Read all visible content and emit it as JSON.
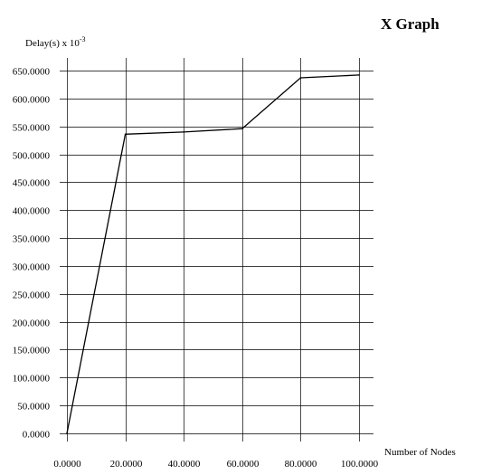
{
  "chart_data": {
    "type": "line",
    "title": "X Graph",
    "ylabel_prefix": "Delay(s) x 10",
    "ylabel_exponent": "-3",
    "xlabel": "Number of Nodes",
    "xlim": [
      0,
      100
    ],
    "ylim": [
      0,
      650
    ],
    "grid": true,
    "x_ticks": [
      0,
      20,
      40,
      60,
      80,
      100
    ],
    "x_tick_labels": [
      "0.0000",
      "20.0000",
      "40.0000",
      "60.0000",
      "80.0000",
      "100.0000"
    ],
    "y_ticks": [
      0,
      50,
      100,
      150,
      200,
      250,
      300,
      350,
      400,
      450,
      500,
      550,
      600,
      650
    ],
    "y_tick_labels": [
      "0.0000",
      "50.0000",
      "100.0000",
      "150.0000",
      "200.0000",
      "250.0000",
      "300.0000",
      "350.0000",
      "400.0000",
      "450.0000",
      "500.0000",
      "550.0000",
      "600.0000",
      "650.0000"
    ],
    "series": [
      {
        "x": [
          0,
          20,
          40,
          60,
          80,
          100
        ],
        "y": [
          0,
          536,
          540,
          546,
          637,
          642
        ],
        "color": "#000000"
      }
    ]
  }
}
